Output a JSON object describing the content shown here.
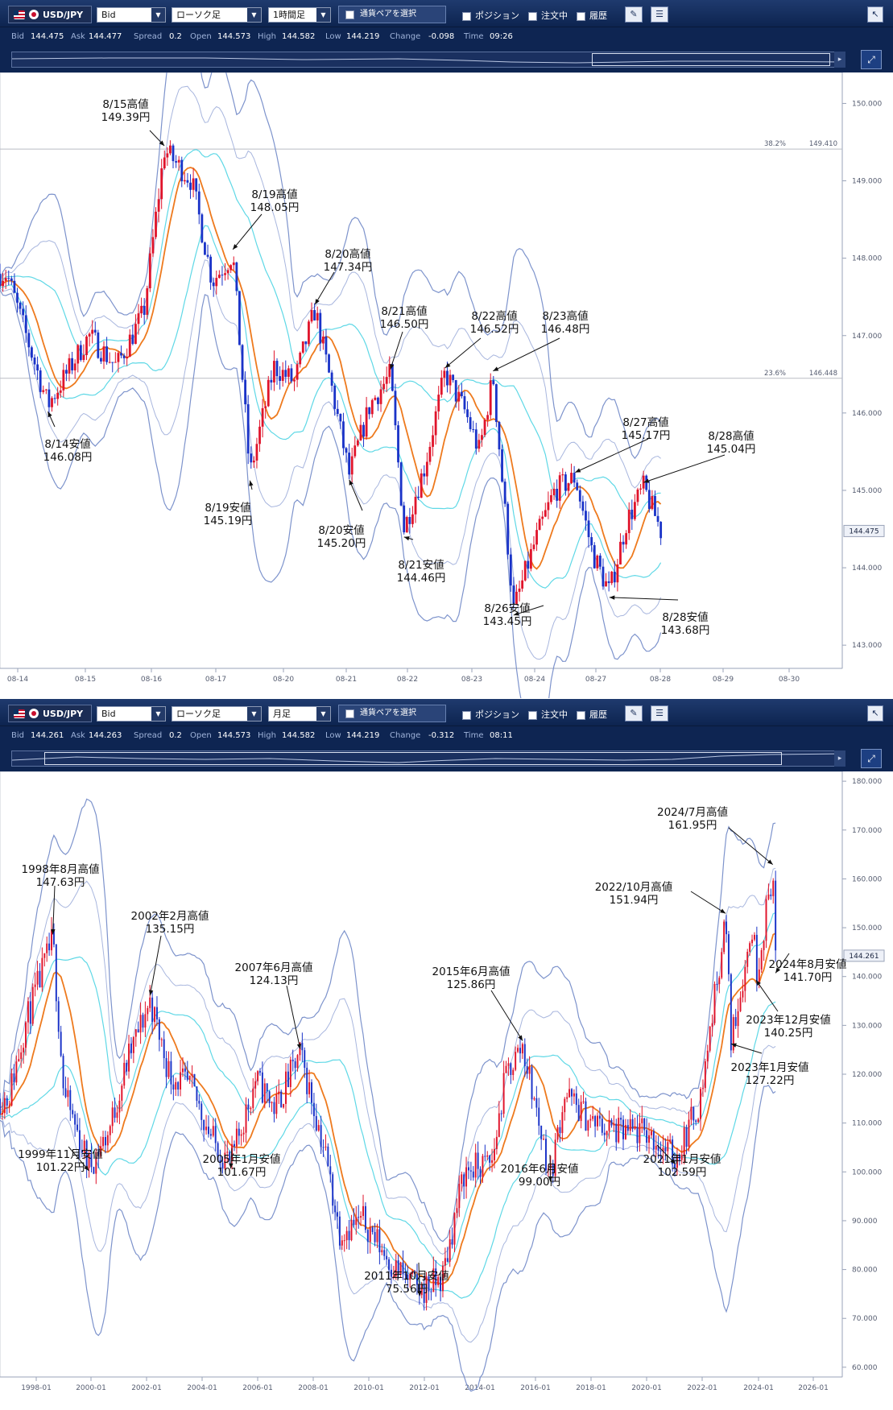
{
  "panels": [
    {
      "toolbar": {
        "pair": "USD/JPY",
        "price_type": "Bid",
        "chart_type": "ローソク足",
        "timeframe": "1時間足",
        "select_pair_button": "通貨ペアを選択",
        "position_label": "ポジション",
        "orders_label": "注文中",
        "history_label": "履歴"
      },
      "info": {
        "bid_label": "Bid",
        "bid": "144.475",
        "ask_label": "Ask",
        "ask": "144.477",
        "spread_label": "Spread",
        "spread": "0.2",
        "open_label": "Open",
        "open": "144.573",
        "high_label": "High",
        "high": "144.582",
        "low_label": "Low",
        "low": "144.219",
        "change_label": "Change",
        "change": "-0.098",
        "time_label": "Time",
        "time": "09:26"
      },
      "price_box": "144.475",
      "chart_data": {
        "type": "candlestick",
        "timeframe": "1時間足",
        "ylim": [
          142.7,
          150.4
        ],
        "y_ticks": [
          "143.000",
          "144.000",
          "145.000",
          "146.000",
          "147.000",
          "148.000",
          "149.000",
          "150.000"
        ],
        "x_ticks": [
          "08-14",
          "08-15",
          "08-16",
          "08-17",
          "08-20",
          "08-21",
          "08-22",
          "08-23",
          "08-24",
          "08-27",
          "08-28",
          "08-29",
          "08-30"
        ],
        "fib_lines": [
          {
            "label": "38.2%",
            "value": "149.410"
          },
          {
            "label": "23.6%",
            "value": "146.448"
          }
        ],
        "current_price": 144.475,
        "annotations": [
          {
            "x_date": "08-14",
            "label": "8/14安値",
            "value": "146.08円",
            "price": 146.08,
            "kind": "low"
          },
          {
            "x_date": "08-15",
            "label": "8/15高値",
            "value": "149.39円",
            "price": 149.39,
            "kind": "high"
          },
          {
            "x_date": "08-16",
            "label": "8/19高値",
            "value": "148.05円",
            "price": 148.05,
            "kind": "high"
          },
          {
            "x_date": "08-17",
            "label": "8/19安値",
            "value": "145.19円",
            "price": 145.19,
            "kind": "low"
          },
          {
            "x_date": "08-20",
            "label": "8/20高値",
            "value": "147.34円",
            "price": 147.34,
            "kind": "high"
          },
          {
            "x_date": "08-21",
            "label": "8/20安値",
            "value": "145.20円",
            "price": 145.2,
            "kind": "low"
          },
          {
            "x_date": "08-22",
            "label": "8/21高値",
            "value": "146.50円",
            "price": 146.5,
            "kind": "high"
          },
          {
            "x_date": "08-22",
            "label": "8/21安値",
            "value": "144.46円",
            "price": 144.46,
            "kind": "low"
          },
          {
            "x_date": "08-23",
            "label": "8/22高値",
            "value": "146.52円",
            "price": 146.52,
            "kind": "high"
          },
          {
            "x_date": "08-24",
            "label": "8/23高値",
            "value": "146.48円",
            "price": 146.48,
            "kind": "high"
          },
          {
            "x_date": "08-24",
            "label": "8/26安値",
            "value": "143.45円",
            "price": 143.45,
            "kind": "low"
          },
          {
            "x_date": "08-27",
            "label": "8/27高値",
            "value": "145.17円",
            "price": 145.17,
            "kind": "high"
          },
          {
            "x_date": "08-28",
            "label": "8/28安値",
            "value": "143.68円",
            "price": 143.68,
            "kind": "low"
          },
          {
            "x_date": "08-29",
            "label": "8/28高値",
            "value": "145.04円",
            "price": 145.04,
            "kind": "high"
          }
        ],
        "price_path": [
          [
            0,
            147.8
          ],
          [
            0.6,
            146.1
          ],
          [
            1.2,
            147.0
          ],
          [
            1.6,
            146.6
          ],
          [
            2.0,
            147.3
          ],
          [
            2.3,
            149.4
          ],
          [
            2.7,
            149.0
          ],
          [
            3.0,
            147.7
          ],
          [
            3.3,
            148.05
          ],
          [
            3.55,
            145.2
          ],
          [
            3.9,
            146.6
          ],
          [
            4.2,
            146.4
          ],
          [
            4.5,
            147.34
          ],
          [
            4.75,
            146.3
          ],
          [
            5.0,
            145.2
          ],
          [
            5.3,
            146.1
          ],
          [
            5.6,
            146.5
          ],
          [
            5.8,
            144.5
          ],
          [
            6.1,
            145.3
          ],
          [
            6.4,
            146.52
          ],
          [
            6.7,
            146.0
          ],
          [
            6.9,
            145.5
          ],
          [
            7.1,
            146.48
          ],
          [
            7.4,
            143.45
          ],
          [
            7.7,
            144.3
          ],
          [
            8.0,
            145.0
          ],
          [
            8.3,
            145.17
          ],
          [
            8.55,
            144.2
          ],
          [
            8.8,
            143.68
          ],
          [
            9.05,
            144.6
          ],
          [
            9.3,
            145.04
          ],
          [
            9.5,
            144.6
          ],
          [
            9.55,
            144.475
          ]
        ]
      }
    },
    {
      "toolbar": {
        "pair": "USD/JPY",
        "price_type": "Bid",
        "chart_type": "ローソク足",
        "timeframe": "月足",
        "select_pair_button": "通貨ペアを選択",
        "position_label": "ポジション",
        "orders_label": "注文中",
        "history_label": "履歴"
      },
      "info": {
        "bid_label": "Bid",
        "bid": "144.261",
        "ask_label": "Ask",
        "ask": "144.263",
        "spread_label": "Spread",
        "spread": "0.2",
        "open_label": "Open",
        "open": "144.573",
        "high_label": "High",
        "high": "144.582",
        "low_label": "Low",
        "low": "144.219",
        "change_label": "Change",
        "change": "-0.312",
        "time_label": "Time",
        "time": "08:11"
      },
      "price_box": "144.261",
      "chart_data": {
        "type": "candlestick",
        "timeframe": "月足",
        "ylim": [
          58,
          182
        ],
        "y_ticks": [
          "60.000",
          "70.000",
          "80.000",
          "90.000",
          "100.000",
          "110.000",
          "120.000",
          "130.000",
          "140.000",
          "150.000",
          "160.000",
          "170.000",
          "180.000"
        ],
        "x_ticks": [
          "1998-01",
          "2000-01",
          "2002-01",
          "2004-01",
          "2006-01",
          "2008-01",
          "2010-01",
          "2012-01",
          "2014-01",
          "2016-01",
          "2018-01",
          "2020-01",
          "2022-01",
          "2024-01",
          "2026-01"
        ],
        "current_price": 144.261,
        "annotations": [
          {
            "x_year": 1998.6,
            "label": "1998年8月高値",
            "value": "147.63円",
            "price": 147.63,
            "kind": "high"
          },
          {
            "x_year": 1999.9,
            "label": "1999年11月安値",
            "value": "101.22円",
            "price": 101.22,
            "kind": "low"
          },
          {
            "x_year": 2002.1,
            "label": "2002年2月高値",
            "value": "135.15円",
            "price": 135.15,
            "kind": "high"
          },
          {
            "x_year": 2005.0,
            "label": "2005年1月安値",
            "value": "101.67円",
            "price": 101.67,
            "kind": "low"
          },
          {
            "x_year": 2007.5,
            "label": "2007年6月高値",
            "value": "124.13円",
            "price": 124.13,
            "kind": "high"
          },
          {
            "x_year": 2011.8,
            "label": "2011年10月安値",
            "value": "75.56円",
            "price": 75.56,
            "kind": "low"
          },
          {
            "x_year": 2015.5,
            "label": "2015年6月高値",
            "value": "125.86円",
            "price": 125.86,
            "kind": "high"
          },
          {
            "x_year": 2016.5,
            "label": "2016年6月安値",
            "value": "99.00円",
            "price": 99.0,
            "kind": "low"
          },
          {
            "x_year": 2021.0,
            "label": "2021年1月安値",
            "value": "102.59円",
            "price": 102.59,
            "kind": "low"
          },
          {
            "x_year": 2022.8,
            "label": "2022/10月高値",
            "value": "151.94円",
            "price": 151.94,
            "kind": "high"
          },
          {
            "x_year": 2023.0,
            "label": "2023年1月安値",
            "value": "127.22円",
            "price": 127.22,
            "kind": "low"
          },
          {
            "x_year": 2023.9,
            "label": "2023年12月安値",
            "value": "140.25円",
            "price": 140.25,
            "kind": "low"
          },
          {
            "x_year": 2024.5,
            "label": "2024/7月高値",
            "value": "161.95円",
            "price": 161.95,
            "kind": "high"
          },
          {
            "x_year": 2024.6,
            "label": "2024年8月安値",
            "value": "141.70円",
            "price": 141.7,
            "kind": "low"
          }
        ],
        "price_path": [
          [
            1997.0,
            115
          ],
          [
            1997.6,
            130
          ],
          [
            1998.6,
            147.6
          ],
          [
            1999.0,
            116
          ],
          [
            1999.9,
            101.2
          ],
          [
            2000.6,
            108
          ],
          [
            2001.3,
            123
          ],
          [
            2002.1,
            135.1
          ],
          [
            2002.8,
            120
          ],
          [
            2003.6,
            117
          ],
          [
            2004.4,
            106
          ],
          [
            2005.0,
            101.7
          ],
          [
            2005.9,
            119
          ],
          [
            2006.6,
            113
          ],
          [
            2007.5,
            124.1
          ],
          [
            2008.4,
            104
          ],
          [
            2008.9,
            88
          ],
          [
            2009.8,
            90
          ],
          [
            2010.8,
            81
          ],
          [
            2011.8,
            75.6
          ],
          [
            2012.6,
            78
          ],
          [
            2013.4,
            100
          ],
          [
            2014.4,
            102
          ],
          [
            2014.9,
            120
          ],
          [
            2015.5,
            125.9
          ],
          [
            2016.5,
            99.0
          ],
          [
            2017.0,
            116
          ],
          [
            2018.0,
            110
          ],
          [
            2019.0,
            108
          ],
          [
            2020.0,
            108
          ],
          [
            2021.0,
            102.6
          ],
          [
            2021.9,
            115
          ],
          [
            2022.8,
            151.9
          ],
          [
            2023.0,
            127.2
          ],
          [
            2023.8,
            151
          ],
          [
            2023.9,
            140.3
          ],
          [
            2024.5,
            161.9
          ],
          [
            2024.6,
            144.3
          ]
        ]
      }
    }
  ]
}
